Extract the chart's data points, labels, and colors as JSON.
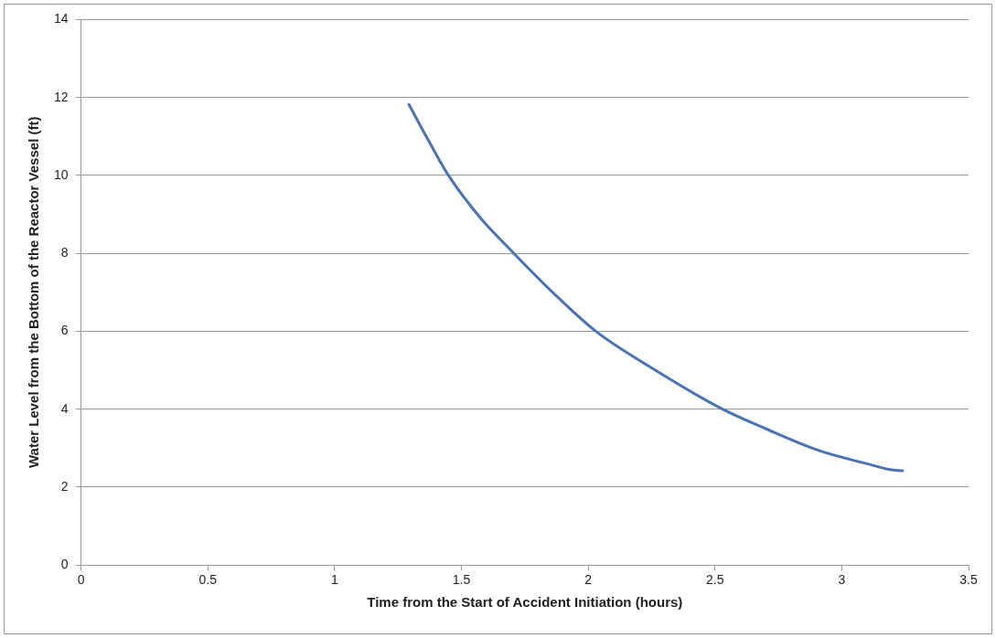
{
  "chart_data": {
    "type": "line",
    "xlabel": "Time from the Start of Accident Initiation (hours)",
    "ylabel": "Water Level from the Bottom of the Reactor Vessel (ft)",
    "series": [
      {
        "color": "#4a72b8",
        "x": [
          1.293,
          1.37,
          1.449,
          1.57,
          1.707,
          1.86,
          2.03,
          2.24,
          2.53,
          2.7,
          2.91,
          3.1,
          3.19,
          3.24
        ],
        "values": [
          11.82,
          10.9,
          10,
          8.95,
          8,
          7,
          6,
          5.1,
          4,
          3.5,
          2.94,
          2.6,
          2.45,
          2.42
        ]
      }
    ],
    "xlim": [
      0,
      3.5
    ],
    "xticks": [
      0,
      0.5,
      1,
      1.5,
      2,
      2.5,
      3,
      3.5
    ],
    "ylim": [
      0,
      14
    ],
    "yticks": [
      0,
      2,
      4,
      6,
      8,
      10,
      12,
      14
    ],
    "grid": "y",
    "legend": false,
    "marker": "none",
    "line_style": "solid"
  }
}
